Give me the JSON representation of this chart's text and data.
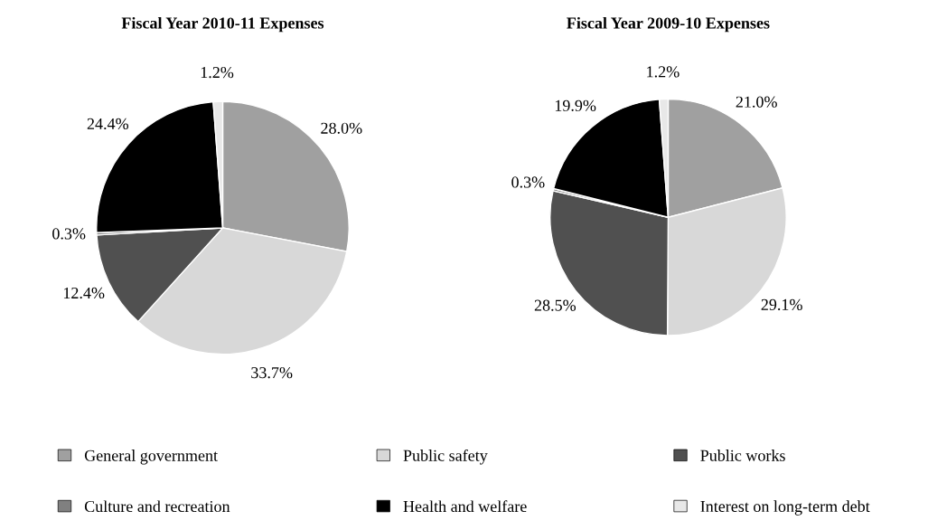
{
  "chart_data": [
    {
      "type": "pie",
      "title": "Fiscal Year 2010-11 Expenses",
      "categories": [
        "General government",
        "Public safety",
        "Public works",
        "Culture and recreation",
        "Health and welfare",
        "Interest on long-term debt"
      ],
      "values": [
        28.0,
        33.7,
        12.4,
        0.3,
        24.4,
        1.2
      ],
      "value_labels": [
        "28.0%",
        "33.7%",
        "12.4%",
        "0.3%",
        "24.4%",
        "1.2%"
      ],
      "colors": [
        "#a0a0a0",
        "#d8d8d8",
        "#505050",
        "#808080",
        "#000000",
        "#e8e8e8"
      ],
      "legend": "bottom"
    },
    {
      "type": "pie",
      "title": "Fiscal Year 2009-10 Expenses",
      "categories": [
        null,
        null,
        null,
        null,
        null,
        null
      ],
      "values": [
        21.0,
        29.1,
        28.5,
        0.3,
        19.9,
        1.2
      ],
      "value_labels": [
        "21.0%",
        "29.1%",
        "28.5%",
        "0.3%",
        "19.9%",
        "1.2%"
      ],
      "colors": [
        "#a0a0a0",
        "#d8d8d8",
        "#505050",
        "#808080",
        "#000000",
        "#e8e8e8"
      ]
    }
  ]
}
